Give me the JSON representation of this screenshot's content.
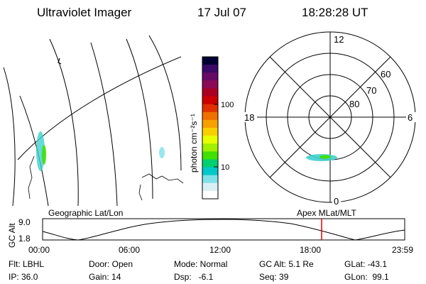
{
  "header": {
    "instrument": "Ultraviolet Imager",
    "date": "17 Jul 07",
    "time": "18:28:28 UT"
  },
  "colorbar": {
    "unit_label": "photon cm⁻²s⁻¹",
    "tick_labels": [
      "100",
      "10"
    ],
    "colors": [
      "#000033",
      "#3a0a66",
      "#660a66",
      "#8a0a55",
      "#aa0022",
      "#cc0000",
      "#e03000",
      "#f07000",
      "#f8a000",
      "#f8d000",
      "#e8ff00",
      "#a0f000",
      "#40e000",
      "#00d070",
      "#00c8c8",
      "#80e0e8",
      "#d8f0f4",
      "#ffffff"
    ]
  },
  "polar": {
    "labels": {
      "top": "12",
      "left": "18",
      "right": "6",
      "bottom": "0"
    },
    "lat_labels": [
      "60",
      "70",
      "80"
    ]
  },
  "orbit_plot": {
    "left_title": "Geographic Lat/Lon",
    "right_title": "Apex  MLat/MLT",
    "ylabel": "GC Alt",
    "y_ticks": [
      "9.0",
      "1.8"
    ],
    "x_ticks": [
      "00:00",
      "06:00",
      "12:00",
      "18:00",
      "23:59"
    ],
    "marker_color": "#dd0000"
  },
  "info": {
    "row1": [
      "Flt: LBHL",
      "Door: Open",
      "Mode: Normal",
      "GC Alt: 5.1 Re",
      "GLat: -43.1"
    ],
    "row2": [
      "IP: 36.0",
      "Gain: 14",
      "Dsp:   -6.1",
      "Seq: 39",
      "GLon:  99.1"
    ]
  }
}
